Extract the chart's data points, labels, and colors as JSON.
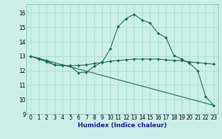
{
  "xlabel": "Humidex (Indice chaleur)",
  "bg_color": "#cceee8",
  "grid_color": "#aaddcc",
  "line_color": "#1a6a5a",
  "xlim": [
    -0.5,
    23.5
  ],
  "ylim": [
    9,
    16.6
  ],
  "yticks": [
    9,
    10,
    11,
    12,
    13,
    14,
    15,
    16
  ],
  "xticks": [
    0,
    1,
    2,
    3,
    4,
    5,
    6,
    7,
    8,
    9,
    10,
    11,
    12,
    13,
    14,
    15,
    16,
    17,
    18,
    19,
    20,
    21,
    22,
    23
  ],
  "series0_x": [
    0,
    1,
    2,
    3,
    4,
    5,
    6,
    7,
    8,
    9,
    10,
    11,
    12,
    13,
    14,
    15,
    16,
    17,
    18,
    19,
    20,
    21,
    22,
    23
  ],
  "series0_y": [
    13.0,
    12.8,
    12.6,
    12.4,
    12.35,
    12.3,
    11.85,
    11.9,
    12.3,
    12.6,
    13.5,
    15.05,
    15.6,
    15.9,
    15.5,
    15.3,
    14.6,
    14.3,
    13.05,
    12.8,
    12.5,
    12.0,
    10.2,
    9.6
  ],
  "series1_x": [
    0,
    1,
    2,
    3,
    4,
    5,
    6,
    7,
    8,
    9,
    10,
    11,
    12,
    13,
    14,
    15,
    16,
    17,
    18,
    19,
    20,
    21,
    22,
    23
  ],
  "series1_y": [
    13.0,
    12.85,
    12.7,
    12.4,
    12.35,
    12.35,
    12.35,
    12.4,
    12.5,
    12.55,
    12.65,
    12.7,
    12.75,
    12.8,
    12.8,
    12.8,
    12.8,
    12.75,
    12.7,
    12.7,
    12.6,
    12.55,
    12.5,
    12.45
  ],
  "series2_x": [
    0,
    23
  ],
  "series2_y": [
    13.0,
    9.6
  ]
}
